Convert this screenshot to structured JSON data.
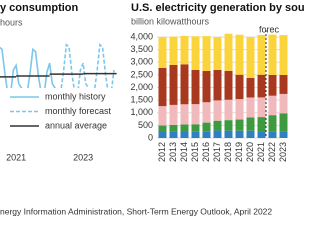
{
  "chart_data": [
    {
      "type": "line",
      "title": "y consumption",
      "subtitle": "hours",
      "xlim": [
        2020.52,
        2024.25
      ],
      "ylim": [
        250,
        420
      ],
      "xticks": [
        2021,
        2023
      ],
      "legend": "lower left",
      "series": [
        {
          "name": "monthly history",
          "color": "#7cc7ea",
          "dash": false,
          "x": [
            2020.5,
            2020.58,
            2020.67,
            2020.75,
            2020.83,
            2020.92,
            2021,
            2021.08,
            2021.17,
            2021.25,
            2021.33,
            2021.42,
            2021.5,
            2021.58,
            2021.67,
            2021.75,
            2021.83,
            2021.92,
            2022,
            2022.08,
            2022.17
          ],
          "values": [
            385,
            380,
            325,
            285,
            280,
            335,
            345,
            305,
            295,
            270,
            285,
            330,
            380,
            375,
            320,
            285,
            280,
            330,
            350,
            305,
            295
          ]
        },
        {
          "name": "monthly forecast",
          "color": "#7cc7ea",
          "dash": true,
          "x": [
            2022.17,
            2022.25,
            2022.33,
            2022.42,
            2022.5,
            2022.58,
            2022.67,
            2022.75,
            2022.83,
            2022.92,
            2023,
            2023.08,
            2023.17,
            2023.25,
            2023.33,
            2023.42,
            2023.5,
            2023.58,
            2023.67,
            2023.75,
            2023.83,
            2023.92
          ],
          "values": [
            295,
            270,
            285,
            335,
            390,
            385,
            325,
            285,
            280,
            335,
            350,
            305,
            295,
            270,
            285,
            335,
            390,
            385,
            325,
            285,
            280,
            335
          ]
        },
        {
          "name": "annual average",
          "color": "#333333",
          "step": true,
          "x": [
            2020,
            2021,
            2022,
            2023
          ],
          "values": [
            320,
            322,
            326,
            327
          ]
        }
      ]
    },
    {
      "type": "stacked-bar",
      "title": "U.S. electricity generation by sou",
      "subtitle": "billion kilowatthours",
      "categories": [
        "2012",
        "2013",
        "2014",
        "2015",
        "2016",
        "2017",
        "2018",
        "2019",
        "2020",
        "2021",
        "2022",
        "2023"
      ],
      "ylim": [
        0,
        4000
      ],
      "yticks": [
        0,
        {
          "value": 500,
          "label": "500"
        },
        {
          "value": 1000,
          "label": "1,000"
        },
        {
          "value": 1500,
          "label": "1,500"
        },
        {
          "value": 2000,
          "label": "2,000"
        },
        {
          "value": 2500,
          "label": "2,500"
        },
        {
          "value": 3000,
          "label": "3,000"
        },
        {
          "value": 3500,
          "label": "3,500"
        },
        {
          "value": 4000,
          "label": "4,000"
        }
      ],
      "grid": true,
      "forecast_label": "forec",
      "series": [
        {
          "color": "#2f7fc1",
          "values": [
            276,
            269,
            259,
            249,
            268,
            300,
            292,
            288,
            291,
            260,
            265,
            270
          ]
        },
        {
          "color": "#3e9a3e",
          "values": [
            218,
            253,
            280,
            295,
            342,
            385,
            416,
            443,
            524,
            569,
            640,
            710
          ]
        },
        {
          "color": "#f1b9bb",
          "values": [
            769,
            789,
            797,
            797,
            806,
            805,
            807,
            809,
            790,
            778,
            770,
            765
          ]
        },
        {
          "color": "#a8391f",
          "values": [
            1514,
            1581,
            1582,
            1352,
            1239,
            1206,
            1146,
            965,
            773,
            898,
            820,
            750
          ]
        },
        {
          "color": "#fbd43c",
          "values": [
            1225,
            1124,
            1126,
            1335,
            1379,
            1297,
            1469,
            1586,
            1617,
            1575,
            1600,
            1580
          ]
        }
      ]
    }
  ],
  "source": "nergy Information Administration, Short-Term Energy Outlook, April 2022"
}
